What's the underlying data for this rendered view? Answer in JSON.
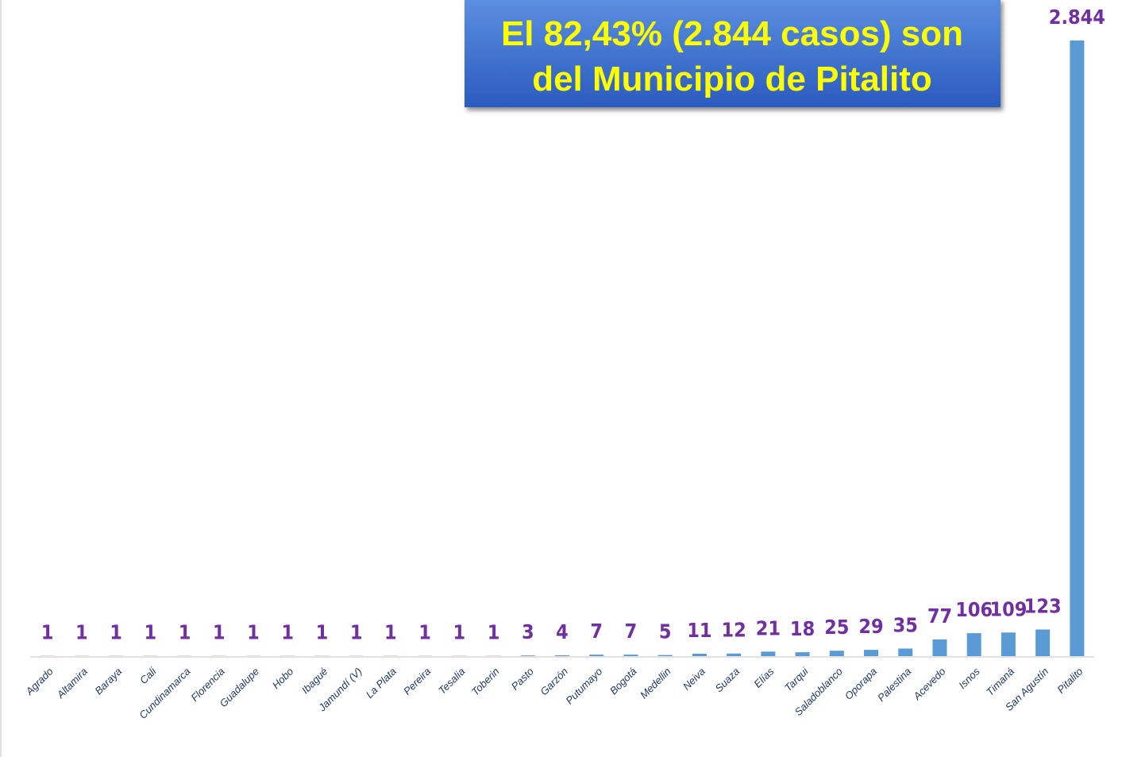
{
  "chart_data": {
    "type": "bar",
    "annotation": [
      "El 82,43% (2.844 casos) son",
      "del Municipio de Pitalito"
    ],
    "categories": [
      "Agrado",
      "Altamira",
      "Baraya",
      "Cali",
      "Cundinamarca",
      "Florencia",
      "Guadalupe",
      "Hobo",
      "Ibagué",
      "Jamundí (V)",
      "La Plata",
      "Pereira",
      "Tesalia",
      "Toberin",
      "Pasto",
      "Garzón",
      "Putumayo",
      "Bogotá",
      "Medellin",
      "Neiva",
      "Suaza",
      "Elías",
      "Tarqui",
      "Saladoblanco",
      "Oporapa",
      "Palestina",
      "Acevedo",
      "Isnos",
      "Timaná",
      "San Agustín",
      "Pitalito"
    ],
    "values": [
      1,
      1,
      1,
      1,
      1,
      1,
      1,
      1,
      1,
      1,
      1,
      1,
      1,
      1,
      3,
      4,
      7,
      7,
      5,
      11,
      12,
      21,
      18,
      25,
      29,
      35,
      77,
      106,
      109,
      123,
      2844
    ],
    "value_labels": [
      "1",
      "1",
      "1",
      "1",
      "1",
      "1",
      "1",
      "1",
      "1",
      "1",
      "1",
      "1",
      "1",
      "1",
      "3",
      "4",
      "7",
      "7",
      "5",
      "11",
      "12",
      "21",
      "18",
      "25",
      "29",
      "35",
      "77",
      "106",
      "109",
      "123",
      "2.844"
    ],
    "color": "#5b9bd5",
    "label_color": "#7030a0"
  }
}
